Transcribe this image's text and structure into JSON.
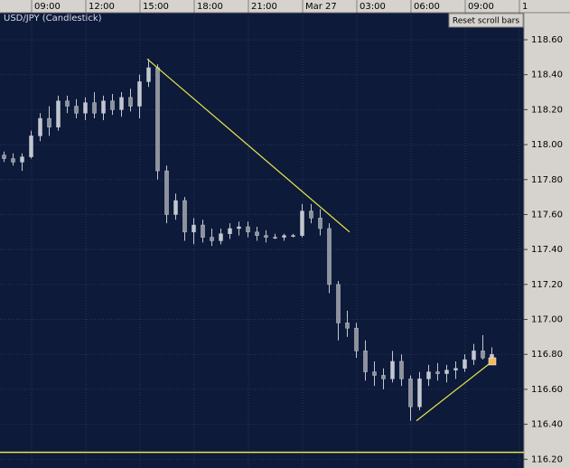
{
  "chart_data": {
    "type": "candlestick",
    "title": "USD/JPY (Candlestick)",
    "button": "Reset scroll bars",
    "color": "#c3c7cf",
    "trend_color": "#e6e64a",
    "marker_color": "#f4b860",
    "grid": true,
    "xlim": [
      0,
      58
    ],
    "xticks": [
      {
        "value": 3.5,
        "label": "09:00"
      },
      {
        "value": 9.5,
        "label": "12:00"
      },
      {
        "value": 15.5,
        "label": "15:00"
      },
      {
        "value": 21.5,
        "label": "18:00"
      },
      {
        "value": 27.5,
        "label": "21:00"
      },
      {
        "value": 33.5,
        "label": "Mar 27"
      },
      {
        "value": 39.5,
        "label": "03:00"
      },
      {
        "value": 45.5,
        "label": "06:00"
      },
      {
        "value": 51.5,
        "label": "09:00"
      },
      {
        "value": 57.5,
        "label": "1"
      }
    ],
    "ylim": [
      116.15,
      118.755
    ],
    "yticks": [
      {
        "value": 116.2,
        "label": "116.20"
      },
      {
        "value": 116.4,
        "label": "116.40"
      },
      {
        "value": 116.6,
        "label": "116.60"
      },
      {
        "value": 116.8,
        "label": "116.80"
      },
      {
        "value": 117.0,
        "label": "117.00"
      },
      {
        "value": 117.2,
        "label": "117.20"
      },
      {
        "value": 117.4,
        "label": "117.40"
      },
      {
        "value": 117.6,
        "label": "117.60"
      },
      {
        "value": 117.8,
        "label": "117.80"
      },
      {
        "value": 118.0,
        "label": "118.00"
      },
      {
        "value": 118.2,
        "label": "118.20"
      },
      {
        "value": 118.4,
        "label": "118.40"
      },
      {
        "value": 118.6,
        "label": "118.60"
      }
    ],
    "open": [
      117.94,
      117.92,
      117.9,
      117.93,
      118.05,
      118.15,
      118.1,
      118.25,
      118.22,
      118.18,
      118.24,
      118.18,
      118.25,
      118.2,
      118.27,
      118.22,
      118.36,
      118.44,
      117.85,
      117.6,
      117.68,
      117.5,
      117.54,
      117.47,
      117.45,
      117.49,
      117.52,
      117.53,
      117.5,
      117.48,
      117.47,
      117.47,
      117.48,
      117.48,
      117.62,
      117.58,
      117.52,
      117.2,
      116.98,
      116.95,
      116.82,
      116.7,
      116.68,
      116.66,
      116.76,
      116.66,
      116.5,
      116.66,
      116.7,
      116.69,
      116.71,
      116.72,
      116.77,
      116.82,
      116.78
    ],
    "high": [
      117.96,
      117.95,
      117.95,
      118.08,
      118.18,
      118.22,
      118.28,
      118.28,
      118.26,
      118.27,
      118.3,
      118.28,
      118.29,
      118.3,
      118.32,
      118.4,
      118.49,
      118.46,
      117.88,
      117.72,
      117.7,
      117.58,
      117.57,
      117.52,
      117.52,
      117.55,
      117.56,
      117.56,
      117.53,
      117.51,
      117.49,
      117.49,
      117.49,
      117.66,
      117.66,
      117.63,
      117.55,
      117.22,
      117.05,
      116.98,
      116.88,
      116.76,
      116.72,
      116.82,
      116.8,
      116.68,
      116.7,
      116.74,
      116.75,
      116.74,
      116.76,
      116.8,
      116.86,
      116.91,
      116.84
    ],
    "low": [
      117.9,
      117.88,
      117.85,
      117.92,
      118.02,
      118.05,
      118.08,
      118.18,
      118.15,
      118.14,
      118.15,
      118.14,
      118.17,
      118.16,
      118.19,
      118.15,
      118.33,
      117.8,
      117.55,
      117.57,
      117.45,
      117.43,
      117.44,
      117.42,
      117.43,
      117.46,
      117.48,
      117.47,
      117.45,
      117.44,
      117.46,
      117.45,
      117.47,
      117.47,
      117.55,
      117.48,
      117.15,
      116.88,
      116.9,
      116.78,
      116.65,
      116.62,
      116.6,
      116.64,
      116.62,
      116.42,
      116.48,
      116.62,
      116.65,
      116.64,
      116.66,
      116.7,
      116.74,
      116.77,
      116.75
    ],
    "close": [
      117.92,
      117.9,
      117.93,
      118.05,
      118.15,
      118.1,
      118.25,
      118.22,
      118.18,
      118.24,
      118.18,
      118.25,
      118.2,
      118.27,
      118.22,
      118.36,
      118.44,
      117.85,
      117.6,
      117.68,
      117.5,
      117.54,
      117.47,
      117.45,
      117.49,
      117.52,
      117.53,
      117.5,
      117.48,
      117.47,
      117.47,
      117.48,
      117.48,
      117.62,
      117.58,
      117.52,
      117.2,
      116.98,
      116.95,
      116.82,
      116.7,
      116.68,
      116.66,
      116.76,
      116.66,
      116.5,
      116.66,
      116.7,
      116.69,
      116.71,
      116.72,
      116.77,
      116.82,
      116.78,
      116.8
    ],
    "trendlines": [
      {
        "x": [
          16.3,
          38.7
        ],
        "y": [
          118.49,
          117.5
        ]
      },
      {
        "x": [
          46.1,
          54.5
        ],
        "y": [
          116.42,
          116.76
        ]
      }
    ],
    "hline": 116.24,
    "marker": {
      "x": 54.5,
      "y": 116.76
    }
  }
}
